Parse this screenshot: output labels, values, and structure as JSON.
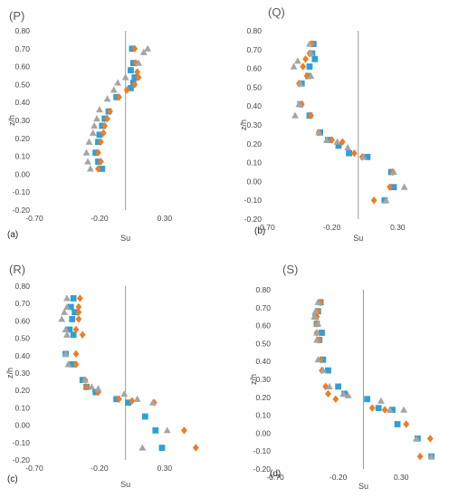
{
  "chart_data": [
    {
      "type": "scatter",
      "panel_label": "(a)",
      "title": "(P)",
      "xlabel": "Su",
      "ylabel": "z/h",
      "xlim": [
        -0.7,
        0.6
      ],
      "ylim": [
        -0.2,
        0.8
      ],
      "x_ticks": [
        "-0.70",
        "-0.20",
        "0.30"
      ],
      "y_ticks": [
        "-0.20",
        "-0.10",
        "0.00",
        "0.10",
        "0.20",
        "0.30",
        "0.40",
        "0.50",
        "0.60",
        "0.70",
        "0.80"
      ],
      "series": [
        {
          "marker": "square",
          "color": "#2e9fd8",
          "points": [
            [
              0.05,
              0.7
            ],
            [
              0.06,
              0.62
            ],
            [
              0.04,
              0.58
            ],
            [
              0.07,
              0.54
            ],
            [
              0.06,
              0.51
            ],
            [
              0.04,
              0.48
            ],
            [
              -0.07,
              0.43
            ],
            [
              -0.13,
              0.35
            ],
            [
              -0.16,
              0.31
            ],
            [
              -0.18,
              0.27
            ],
            [
              -0.2,
              0.22
            ],
            [
              -0.21,
              0.18
            ],
            [
              -0.23,
              0.12
            ],
            [
              -0.21,
              0.07
            ],
            [
              -0.18,
              0.03
            ]
          ]
        },
        {
          "marker": "diamond",
          "color": "#f07c22",
          "points": [
            [
              0.07,
              0.7
            ],
            [
              0.08,
              0.62
            ],
            [
              0.09,
              0.57
            ],
            [
              0.1,
              0.54
            ],
            [
              0.07,
              0.5
            ],
            [
              0.01,
              0.47
            ],
            [
              -0.05,
              0.43
            ],
            [
              -0.12,
              0.35
            ],
            [
              -0.14,
              0.31
            ],
            [
              -0.16,
              0.27
            ],
            [
              -0.17,
              0.23
            ],
            [
              -0.19,
              0.18
            ],
            [
              -0.21,
              0.12
            ],
            [
              -0.19,
              0.07
            ],
            [
              -0.21,
              0.03
            ]
          ]
        },
        {
          "marker": "triangle",
          "color": "#a5a5a5",
          "points": [
            [
              0.17,
              0.7
            ],
            [
              0.14,
              0.68
            ],
            [
              0.1,
              0.62
            ],
            [
              0.0,
              0.54
            ],
            [
              -0.06,
              0.51
            ],
            [
              -0.09,
              0.47
            ],
            [
              -0.14,
              0.42
            ],
            [
              -0.2,
              0.36
            ],
            [
              -0.22,
              0.31
            ],
            [
              -0.24,
              0.27
            ],
            [
              -0.25,
              0.23
            ],
            [
              -0.28,
              0.18
            ],
            [
              -0.3,
              0.12
            ],
            [
              -0.29,
              0.07
            ],
            [
              -0.27,
              0.03
            ]
          ]
        }
      ]
    },
    {
      "type": "scatter",
      "panel_label": "(b)",
      "title": "(Q)",
      "xlabel": "Su",
      "ylabel": "z/h",
      "xlim": [
        -0.7,
        0.6
      ],
      "ylim": [
        -0.2,
        0.8
      ],
      "x_ticks": [
        "-0.70",
        "-0.20",
        "0.30"
      ],
      "y_ticks": [
        "-0.20",
        "-0.10",
        "0.00",
        "0.10",
        "0.20",
        "0.30",
        "0.40",
        "0.50",
        "0.60",
        "0.70",
        "0.80"
      ],
      "series": [
        {
          "marker": "square",
          "color": "#2e9fd8",
          "points": [
            [
              -0.34,
              0.73
            ],
            [
              -0.35,
              0.68
            ],
            [
              -0.33,
              0.65
            ],
            [
              -0.37,
              0.61
            ],
            [
              -0.38,
              0.56
            ],
            [
              -0.43,
              0.52
            ],
            [
              -0.44,
              0.41
            ],
            [
              -0.37,
              0.35
            ],
            [
              -0.29,
              0.26
            ],
            [
              -0.23,
              0.22
            ],
            [
              -0.15,
              0.19
            ],
            [
              -0.07,
              0.15
            ],
            [
              0.07,
              0.13
            ],
            [
              0.25,
              0.05
            ],
            [
              0.27,
              -0.03
            ],
            [
              0.2,
              -0.1
            ]
          ]
        },
        {
          "marker": "diamond",
          "color": "#f07c22",
          "points": [
            [
              -0.35,
              0.73
            ],
            [
              -0.37,
              0.68
            ],
            [
              -0.4,
              0.65
            ],
            [
              -0.42,
              0.61
            ],
            [
              -0.39,
              0.56
            ],
            [
              -0.45,
              0.52
            ],
            [
              -0.43,
              0.41
            ],
            [
              -0.36,
              0.35
            ],
            [
              -0.3,
              0.26
            ],
            [
              -0.2,
              0.22
            ],
            [
              -0.12,
              0.21
            ],
            [
              -0.03,
              0.15
            ],
            [
              0.03,
              0.13
            ],
            [
              0.26,
              0.05
            ],
            [
              0.24,
              -0.03
            ],
            [
              0.12,
              -0.1
            ]
          ]
        },
        {
          "marker": "triangle",
          "color": "#a5a5a5",
          "points": [
            [
              -0.37,
              0.73
            ],
            [
              -0.36,
              0.68
            ],
            [
              -0.46,
              0.64
            ],
            [
              -0.49,
              0.61
            ],
            [
              -0.36,
              0.56
            ],
            [
              -0.44,
              0.52
            ],
            [
              -0.45,
              0.41
            ],
            [
              -0.48,
              0.35
            ],
            [
              -0.3,
              0.26
            ],
            [
              -0.24,
              0.22
            ],
            [
              -0.16,
              0.21
            ],
            [
              -0.08,
              0.18
            ],
            [
              0.04,
              0.13
            ],
            [
              0.27,
              0.05
            ],
            [
              0.35,
              -0.03
            ],
            [
              0.21,
              -0.1
            ]
          ]
        }
      ]
    },
    {
      "type": "scatter",
      "panel_label": "(c)",
      "title": "(R)",
      "xlabel": "Su",
      "ylabel": "z/h",
      "xlim": [
        -0.7,
        0.6
      ],
      "ylim": [
        -0.2,
        0.8
      ],
      "x_ticks": [
        "-0.70",
        "-0.20",
        "0.30"
      ],
      "y_ticks": [
        "-0.20",
        "-0.10",
        "0.00",
        "0.10",
        "0.20",
        "0.30",
        "0.40",
        "0.50",
        "0.60",
        "0.70",
        "0.80"
      ],
      "series": [
        {
          "marker": "square",
          "color": "#2e9fd8",
          "points": [
            [
              -0.4,
              0.73
            ],
            [
              -0.42,
              0.68
            ],
            [
              -0.39,
              0.65
            ],
            [
              -0.41,
              0.61
            ],
            [
              -0.43,
              0.55
            ],
            [
              -0.4,
              0.52
            ],
            [
              -0.46,
              0.41
            ],
            [
              -0.41,
              0.35
            ],
            [
              -0.33,
              0.26
            ],
            [
              -0.3,
              0.22
            ],
            [
              -0.23,
              0.19
            ],
            [
              -0.07,
              0.15
            ],
            [
              0.02,
              0.13
            ],
            [
              0.15,
              0.05
            ],
            [
              0.23,
              -0.03
            ],
            [
              0.28,
              -0.13
            ]
          ]
        },
        {
          "marker": "diamond",
          "color": "#f07c22",
          "points": [
            [
              -0.35,
              0.73
            ],
            [
              -0.36,
              0.68
            ],
            [
              -0.36,
              0.65
            ],
            [
              -0.36,
              0.61
            ],
            [
              -0.38,
              0.55
            ],
            [
              -0.33,
              0.52
            ],
            [
              -0.38,
              0.41
            ],
            [
              -0.38,
              0.35
            ],
            [
              -0.31,
              0.26
            ],
            [
              -0.3,
              0.22
            ],
            [
              -0.21,
              0.19
            ],
            [
              -0.05,
              0.15
            ],
            [
              0.05,
              0.14
            ],
            [
              0.22,
              0.13
            ],
            [
              0.45,
              -0.03
            ],
            [
              0.54,
              -0.13
            ]
          ]
        },
        {
          "marker": "triangle",
          "color": "#a5a5a5",
          "points": [
            [
              -0.45,
              0.73
            ],
            [
              -0.45,
              0.68
            ],
            [
              -0.47,
              0.65
            ],
            [
              -0.49,
              0.61
            ],
            [
              -0.46,
              0.55
            ],
            [
              -0.45,
              0.52
            ],
            [
              -0.46,
              0.41
            ],
            [
              -0.44,
              0.35
            ],
            [
              -0.31,
              0.26
            ],
            [
              -0.26,
              0.22
            ],
            [
              -0.21,
              0.21
            ],
            [
              -0.01,
              0.18
            ],
            [
              0.09,
              0.15
            ],
            [
              0.21,
              0.13
            ],
            [
              0.32,
              -0.03
            ],
            [
              0.13,
              -0.13
            ]
          ]
        }
      ]
    },
    {
      "type": "scatter",
      "panel_label": "(d)",
      "title": "(S)",
      "xlabel": "Su",
      "ylabel": "z/h",
      "xlim": [
        -0.7,
        0.6
      ],
      "ylim": [
        -0.2,
        0.8
      ],
      "x_ticks": [
        "-0.70",
        "-0.20",
        "0.30"
      ],
      "y_ticks": [
        "-0.20",
        "-0.10",
        "0.00",
        "0.10",
        "0.20",
        "0.30",
        "0.40",
        "0.50",
        "0.60",
        "0.70",
        "0.80"
      ],
      "series": [
        {
          "marker": "square",
          "color": "#2e9fd8",
          "points": [
            [
              -0.34,
              0.73
            ],
            [
              -0.36,
              0.68
            ],
            [
              -0.38,
              0.65
            ],
            [
              -0.37,
              0.61
            ],
            [
              -0.33,
              0.56
            ],
            [
              -0.35,
              0.52
            ],
            [
              -0.32,
              0.41
            ],
            [
              -0.28,
              0.35
            ],
            [
              -0.2,
              0.26
            ],
            [
              -0.15,
              0.22
            ],
            [
              0.03,
              0.19
            ],
            [
              0.12,
              0.14
            ],
            [
              0.23,
              0.13
            ],
            [
              0.27,
              0.05
            ],
            [
              0.43,
              -0.03
            ],
            [
              0.54,
              -0.13
            ]
          ]
        },
        {
          "marker": "diamond",
          "color": "#f07c22",
          "points": [
            [
              -0.34,
              0.73
            ],
            [
              -0.36,
              0.68
            ],
            [
              -0.37,
              0.65
            ],
            [
              -0.37,
              0.61
            ],
            [
              -0.37,
              0.56
            ],
            [
              -0.35,
              0.52
            ],
            [
              -0.34,
              0.41
            ],
            [
              -0.33,
              0.35
            ],
            [
              -0.3,
              0.26
            ],
            [
              -0.28,
              0.22
            ],
            [
              -0.22,
              0.19
            ],
            [
              0.07,
              0.14
            ],
            [
              0.17,
              0.13
            ],
            [
              0.34,
              0.05
            ],
            [
              0.53,
              -0.03
            ],
            [
              0.45,
              -0.13
            ]
          ]
        },
        {
          "marker": "triangle",
          "color": "#a5a5a5",
          "points": [
            [
              -0.36,
              0.73
            ],
            [
              -0.38,
              0.68
            ],
            [
              -0.39,
              0.65
            ],
            [
              -0.36,
              0.61
            ],
            [
              -0.37,
              0.56
            ],
            [
              -0.37,
              0.52
            ],
            [
              -0.36,
              0.41
            ],
            [
              -0.32,
              0.35
            ],
            [
              -0.27,
              0.26
            ],
            [
              -0.16,
              0.22
            ],
            [
              -0.12,
              0.21
            ],
            [
              0.14,
              0.18
            ],
            [
              0.21,
              0.13
            ],
            [
              0.32,
              0.13
            ],
            [
              0.42,
              -0.03
            ],
            [
              0.54,
              -0.13
            ]
          ]
        }
      ]
    }
  ]
}
